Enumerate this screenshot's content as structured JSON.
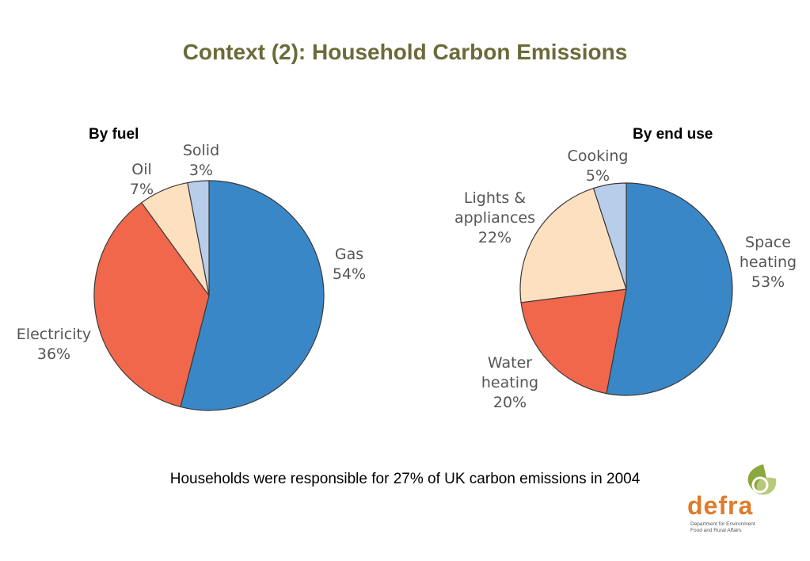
{
  "title": "Context (2): Household Carbon Emissions",
  "caption": "Households were responsible for 27% of UK carbon emissions in 2004",
  "logo": {
    "word": "defra",
    "line1": "Department for Environment",
    "line2": "Food and Rural Affairs",
    "color": "#e07b2a",
    "leaf_color": "#8aa83c"
  },
  "chart_data": [
    {
      "type": "pie",
      "title": "By fuel",
      "slices": [
        {
          "label": "Gas",
          "value": 54,
          "pct": "54%",
          "color": "#3a87c8"
        },
        {
          "label": "Electricity",
          "value": 36,
          "pct": "36%",
          "color": "#f0674b"
        },
        {
          "label": "Oil",
          "value": 7,
          "pct": "7%",
          "color": "#fde0c0"
        },
        {
          "label": "Solid",
          "value": 3,
          "pct": "3%",
          "color": "#b8cde9"
        }
      ]
    },
    {
      "type": "pie",
      "title": "By end use",
      "slices": [
        {
          "label": "Space heating",
          "label_lines": [
            "Space",
            "heating"
          ],
          "value": 53,
          "pct": "53%",
          "color": "#3a87c8"
        },
        {
          "label": "Water heating",
          "label_lines": [
            "Water",
            "heating"
          ],
          "value": 20,
          "pct": "20%",
          "color": "#f0674b"
        },
        {
          "label": "Lights & appliances",
          "label_lines": [
            "Lights &",
            "appliances"
          ],
          "value": 22,
          "pct": "22%",
          "color": "#fde0c0"
        },
        {
          "label": "Cooking",
          "label_lines": [
            "Cooking"
          ],
          "value": 5,
          "pct": "5%",
          "color": "#b8cde9"
        }
      ]
    }
  ]
}
